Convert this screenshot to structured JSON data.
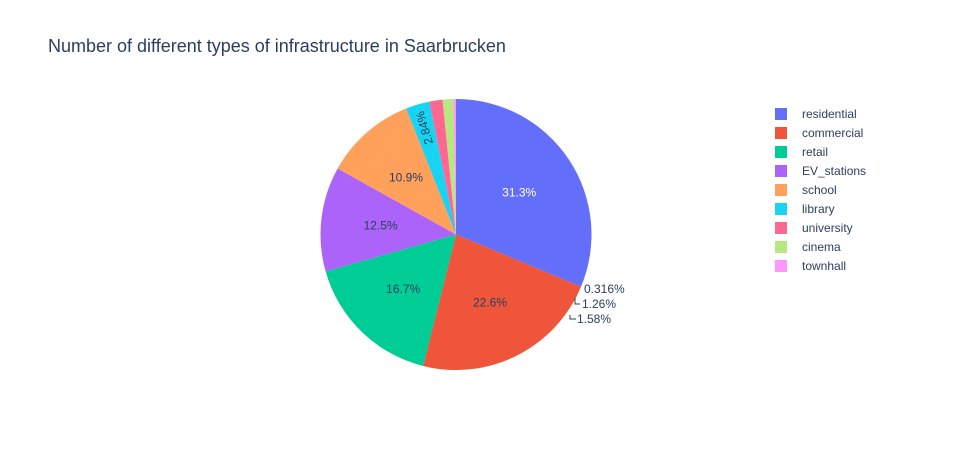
{
  "chart_data": {
    "type": "pie",
    "title": "Number of different types of infrastructure in Saarbrucken",
    "labels": [
      "residential",
      "commercial",
      "retail",
      "EV_stations",
      "school",
      "library",
      "university",
      "cinema",
      "townhall"
    ],
    "values": [
      31.3,
      22.6,
      16.7,
      12.5,
      10.9,
      2.84,
      1.58,
      1.26,
      0.316
    ],
    "value_labels": [
      "31.3%",
      "22.6%",
      "16.7%",
      "12.5%",
      "10.9%",
      "2.84%",
      "1.58%",
      "1.26%",
      "0.316%"
    ],
    "colors": [
      "#636efa",
      "#ef553b",
      "#00cc96",
      "#ab63fa",
      "#ffa15a",
      "#19d3f3",
      "#ff6692",
      "#b6e880",
      "#ff97ff"
    ],
    "direction": "clockwise",
    "start": "12 o'clock",
    "legend_placement": "top-right"
  }
}
